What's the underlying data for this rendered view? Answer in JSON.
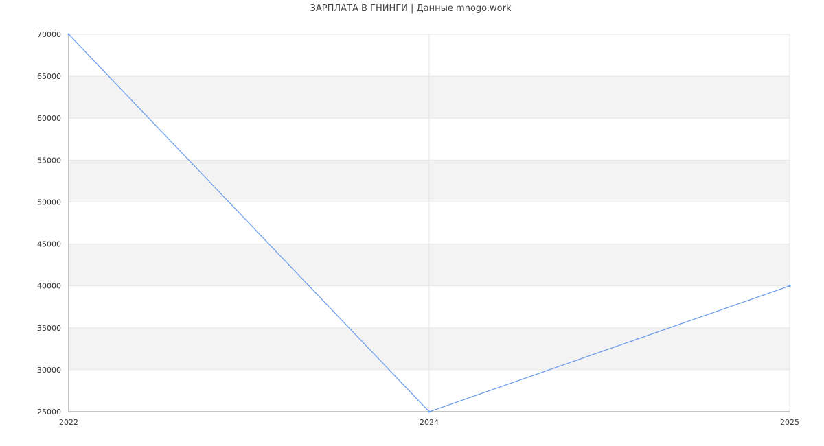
{
  "chart_data": {
    "type": "line",
    "title": "ЗАРПЛАТА В ГНИНГИ | Данные mnogo.work",
    "xlabel": "",
    "ylabel": "",
    "categories": [
      "2022",
      "2024",
      "2025"
    ],
    "series": [
      {
        "values": [
          70000,
          25000,
          40000
        ],
        "color": "#6d9eeb"
      }
    ],
    "ylim": [
      25000,
      70000
    ],
    "yticks": [
      25000,
      30000,
      35000,
      40000,
      45000,
      50000,
      55000,
      60000,
      65000,
      70000
    ],
    "grid": true,
    "band_color": "#f3f3f3",
    "legend": "none"
  }
}
